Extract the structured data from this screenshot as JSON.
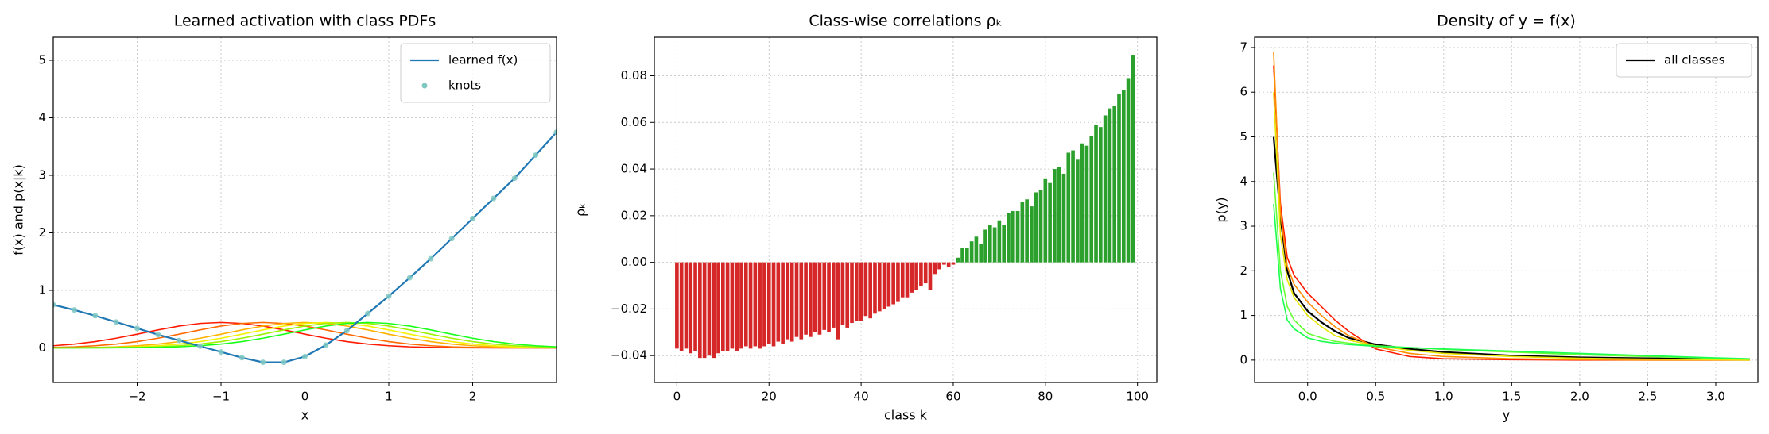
{
  "chart_data": [
    {
      "type": "line",
      "title": "Learned activation with class PDFs",
      "xlabel": "x",
      "ylabel": "f(x) and p(x|k)",
      "x": [
        -3,
        -2.75,
        -2.5,
        -2.25,
        -2,
        -1.75,
        -1.5,
        -1.25,
        -1,
        -0.75,
        -0.5,
        -0.25,
        0,
        0.25,
        0.5,
        0.75,
        1,
        1.25,
        1.5,
        1.75,
        2,
        2.25,
        2.5,
        2.75,
        3
      ],
      "series": [
        {
          "name": "learned f(x)",
          "color": "#1f77b4",
          "style": "line",
          "values": [
            0.75,
            0.66,
            0.56,
            0.45,
            0.34,
            0.23,
            0.13,
            0.03,
            -0.07,
            -0.17,
            -0.25,
            -0.25,
            -0.15,
            0.05,
            0.3,
            0.6,
            0.9,
            1.22,
            1.55,
            1.9,
            2.25,
            2.6,
            2.95,
            3.35,
            3.75
          ]
        },
        {
          "name": "knots",
          "color": "#7fc8c2",
          "style": "markers",
          "values": [
            0.75,
            0.66,
            0.56,
            0.45,
            0.34,
            0.23,
            0.13,
            0.03,
            -0.07,
            -0.17,
            -0.25,
            -0.25,
            -0.15,
            0.05,
            0.3,
            0.6,
            0.9,
            1.22,
            1.55,
            1.9,
            2.25,
            2.6,
            2.95,
            3.35,
            3.75
          ]
        }
      ],
      "pdfs": [
        {
          "color": "#ff1a00",
          "values": [
            0.038,
            0.067,
            0.11,
            0.169,
            0.239,
            0.313,
            0.38,
            0.426,
            0.443,
            0.426,
            0.38,
            0.313,
            0.239,
            0.169,
            0.11,
            0.067,
            0.038,
            0.019,
            0.009,
            0.004,
            0.002,
            0.001,
            0,
            0,
            0
          ]
        },
        {
          "color": "#ff6a00",
          "values": [
            0.009,
            0.019,
            0.038,
            0.067,
            0.11,
            0.169,
            0.239,
            0.313,
            0.38,
            0.426,
            0.443,
            0.426,
            0.38,
            0.313,
            0.239,
            0.169,
            0.11,
            0.067,
            0.038,
            0.019,
            0.009,
            0.004,
            0.002,
            0.001,
            0
          ]
        },
        {
          "color": "#ffb300",
          "values": [
            0.002,
            0.004,
            0.009,
            0.019,
            0.038,
            0.067,
            0.11,
            0.169,
            0.239,
            0.313,
            0.38,
            0.426,
            0.443,
            0.426,
            0.38,
            0.313,
            0.239,
            0.169,
            0.11,
            0.067,
            0.038,
            0.019,
            0.009,
            0.004,
            0.002
          ]
        },
        {
          "color": "#f2f200",
          "values": [
            0.001,
            0.002,
            0.004,
            0.009,
            0.019,
            0.038,
            0.067,
            0.11,
            0.169,
            0.239,
            0.313,
            0.38,
            0.426,
            0.443,
            0.426,
            0.38,
            0.313,
            0.239,
            0.169,
            0.11,
            0.067,
            0.038,
            0.019,
            0.009,
            0.004
          ]
        },
        {
          "color": "#9cf200",
          "values": [
            0,
            0.001,
            0.002,
            0.004,
            0.009,
            0.019,
            0.038,
            0.067,
            0.11,
            0.169,
            0.239,
            0.313,
            0.38,
            0.426,
            0.443,
            0.426,
            0.38,
            0.313,
            0.239,
            0.169,
            0.11,
            0.067,
            0.038,
            0.019,
            0.009
          ]
        },
        {
          "color": "#1aff1a",
          "values": [
            0,
            0,
            0.001,
            0.002,
            0.004,
            0.009,
            0.019,
            0.038,
            0.067,
            0.11,
            0.169,
            0.239,
            0.313,
            0.38,
            0.426,
            0.443,
            0.426,
            0.38,
            0.313,
            0.239,
            0.169,
            0.11,
            0.067,
            0.038,
            0.019
          ]
        }
      ],
      "xlim": [
        -3,
        3
      ],
      "ylim": [
        -0.6,
        5.4
      ],
      "xticks": [
        {
          "value": -2,
          "label": "−2"
        },
        {
          "value": -1,
          "label": "−1"
        },
        0,
        1,
        2
      ],
      "yticks": [
        0,
        1,
        2,
        3,
        4,
        5
      ],
      "grid": true,
      "legend": "upper right"
    },
    {
      "type": "bar",
      "title": "Class-wise correlations ρₖ",
      "xlabel": "class k",
      "ylabel": "ρₖ",
      "x": [
        0,
        1,
        2,
        3,
        4,
        5,
        6,
        7,
        8,
        9,
        10,
        11,
        12,
        13,
        14,
        15,
        16,
        17,
        18,
        19,
        20,
        21,
        22,
        23,
        24,
        25,
        26,
        27,
        28,
        29,
        30,
        31,
        32,
        33,
        34,
        35,
        36,
        37,
        38,
        39,
        40,
        41,
        42,
        43,
        44,
        45,
        46,
        47,
        48,
        49,
        50,
        51,
        52,
        53,
        54,
        55,
        56,
        57,
        58,
        59,
        60,
        61,
        62,
        63,
        64,
        65,
        66,
        67,
        68,
        69,
        70,
        71,
        72,
        73,
        74,
        75,
        76,
        77,
        78,
        79,
        80,
        81,
        82,
        83,
        84,
        85,
        86,
        87,
        88,
        89,
        90,
        91,
        92,
        93,
        94,
        95,
        96,
        97,
        98,
        99
      ],
      "values": [
        -0.037,
        -0.038,
        -0.037,
        -0.039,
        -0.038,
        -0.041,
        -0.041,
        -0.04,
        -0.041,
        -0.039,
        -0.038,
        -0.038,
        -0.037,
        -0.038,
        -0.037,
        -0.036,
        -0.037,
        -0.036,
        -0.037,
        -0.036,
        -0.035,
        -0.036,
        -0.034,
        -0.035,
        -0.033,
        -0.034,
        -0.032,
        -0.033,
        -0.031,
        -0.032,
        -0.03,
        -0.031,
        -0.029,
        -0.03,
        -0.028,
        -0.033,
        -0.027,
        -0.028,
        -0.026,
        -0.025,
        -0.025,
        -0.023,
        -0.024,
        -0.022,
        -0.021,
        -0.02,
        -0.019,
        -0.018,
        -0.017,
        -0.015,
        -0.015,
        -0.013,
        -0.012,
        -0.01,
        -0.009,
        -0.012,
        -0.005,
        -0.003,
        -0.001,
        -0.002,
        -0.001,
        0.002,
        0.006,
        0.006,
        0.009,
        0.011,
        0.008,
        0.014,
        0.016,
        0.015,
        0.018,
        0.016,
        0.021,
        0.022,
        0.022,
        0.026,
        0.027,
        0.024,
        0.03,
        0.031,
        0.036,
        0.034,
        0.04,
        0.041,
        0.038,
        0.047,
        0.048,
        0.044,
        0.051,
        0.05,
        0.054,
        0.059,
        0.058,
        0.063,
        0.066,
        0.067,
        0.072,
        0.074,
        0.079,
        0.089
      ],
      "negative_color": "#d62728",
      "positive_color": "#2ca02c",
      "xlim": [
        -4.9,
        104.2
      ],
      "ylim": [
        -0.0515,
        0.0965
      ],
      "xticks": [
        0,
        20,
        40,
        60,
        80,
        100
      ],
      "yticks": [
        {
          "value": -0.04,
          "label": "−0.04"
        },
        {
          "value": -0.02,
          "label": "−0.02"
        },
        {
          "value": 0,
          "label": "0.00"
        },
        {
          "value": 0.02,
          "label": "0.02"
        },
        {
          "value": 0.04,
          "label": "0.04"
        },
        {
          "value": 0.06,
          "label": "0.06"
        },
        {
          "value": 0.08,
          "label": "0.08"
        }
      ],
      "grid": true
    },
    {
      "type": "line",
      "title": "Density of y = f(x)",
      "xlabel": "y",
      "ylabel": "p(y)",
      "x": [
        -0.25,
        -0.2,
        -0.15,
        -0.1,
        0,
        0.1,
        0.2,
        0.3,
        0.5,
        0.75,
        1,
        1.5,
        2,
        2.5,
        3,
        3.25
      ],
      "series": [
        {
          "name": "all classes",
          "color": "#000000",
          "style": "line",
          "values": [
            5.0,
            3.2,
            2.0,
            1.5,
            1.1,
            0.85,
            0.65,
            0.5,
            0.35,
            0.25,
            0.18,
            0.1,
            0.06,
            0.04,
            0.02,
            0.01
          ]
        }
      ],
      "pdfs": [
        {
          "color": "#ff1a00",
          "values": [
            6.6,
            3.5,
            2.3,
            1.9,
            1.5,
            1.2,
            0.9,
            0.65,
            0.25,
            0.08,
            0.03,
            0.01,
            0,
            0,
            0,
            0
          ]
        },
        {
          "color": "#ff8c00",
          "values": [
            6.9,
            3.3,
            2.1,
            1.7,
            1.3,
            1.0,
            0.75,
            0.55,
            0.3,
            0.15,
            0.08,
            0.03,
            0.01,
            0,
            0,
            0
          ]
        },
        {
          "color": "#e6e600",
          "values": [
            6.0,
            2.8,
            1.8,
            1.4,
            1.0,
            0.75,
            0.55,
            0.45,
            0.32,
            0.22,
            0.15,
            0.08,
            0.04,
            0.02,
            0.01,
            0
          ]
        },
        {
          "color": "#66ff33",
          "values": [
            4.2,
            2.0,
            1.2,
            0.9,
            0.6,
            0.5,
            0.42,
            0.38,
            0.32,
            0.28,
            0.24,
            0.18,
            0.12,
            0.08,
            0.04,
            0.02
          ]
        },
        {
          "color": "#1aff4d",
          "values": [
            3.5,
            1.6,
            0.9,
            0.7,
            0.5,
            0.42,
            0.38,
            0.35,
            0.31,
            0.28,
            0.25,
            0.2,
            0.15,
            0.1,
            0.05,
            0.03
          ]
        }
      ],
      "xlim": [
        -0.39,
        3.31
      ],
      "ylim": [
        -0.5,
        7.23
      ],
      "xticks": [
        {
          "value": 0,
          "label": "0.0"
        },
        0.5,
        {
          "value": 1,
          "label": "1.0"
        },
        1.5,
        {
          "value": 2,
          "label": "2.0"
        },
        2.5,
        {
          "value": 3,
          "label": "3.0"
        }
      ],
      "yticks": [
        0,
        1,
        2,
        3,
        4,
        5,
        6,
        7
      ],
      "grid": true,
      "legend": "upper right"
    }
  ]
}
